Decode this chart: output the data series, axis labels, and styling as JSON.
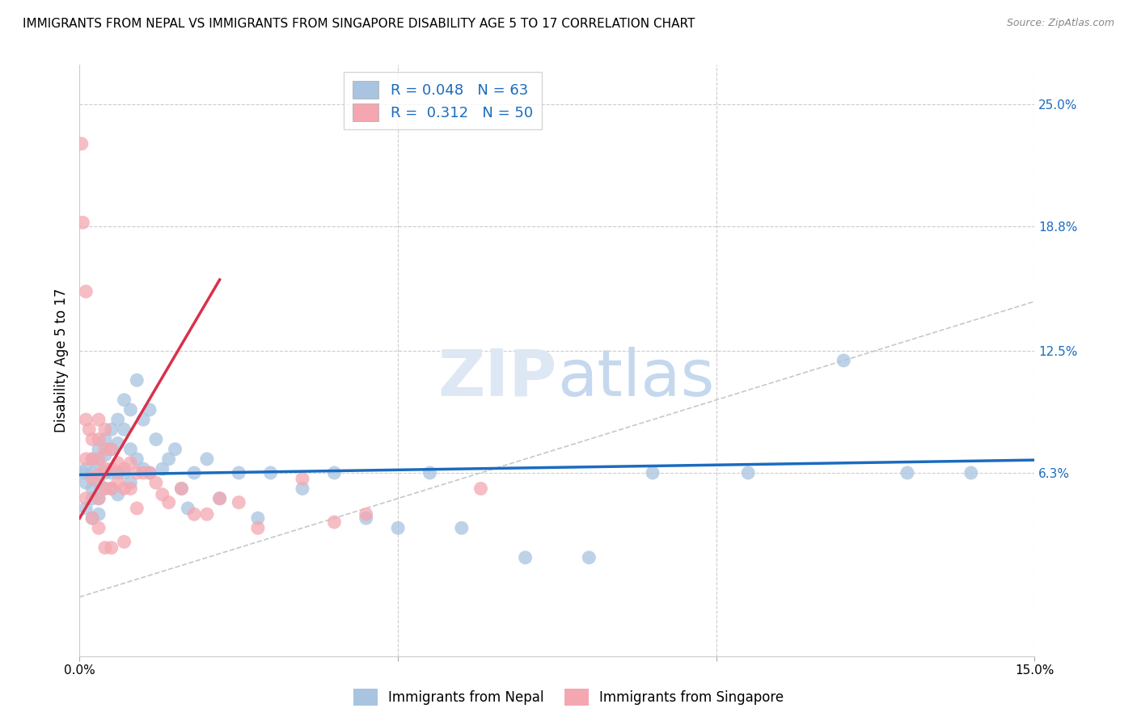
{
  "title": "IMMIGRANTS FROM NEPAL VS IMMIGRANTS FROM SINGAPORE DISABILITY AGE 5 TO 17 CORRELATION CHART",
  "source": "Source: ZipAtlas.com",
  "ylabel": "Disability Age 5 to 17",
  "xlim": [
    0.0,
    0.15
  ],
  "ylim": [
    -0.03,
    0.27
  ],
  "y_tick_labels_right": [
    "6.3%",
    "12.5%",
    "18.8%",
    "25.0%"
  ],
  "y_tick_vals_right": [
    0.063,
    0.125,
    0.188,
    0.25
  ],
  "nepal_color": "#a8c4e0",
  "singapore_color": "#f4a7b0",
  "nepal_line_color": "#1b6bbf",
  "singapore_line_color": "#d9314a",
  "diagonal_color": "#c8c8c8",
  "legend_nepal_label": "R = 0.048   N = 63",
  "legend_singapore_label": "R =  0.312   N = 50",
  "bottom_legend_nepal": "Immigrants from Nepal",
  "bottom_legend_singapore": "Immigrants from Singapore",
  "nepal_x": [
    0.0005,
    0.001,
    0.001,
    0.001,
    0.002,
    0.002,
    0.002,
    0.002,
    0.002,
    0.003,
    0.003,
    0.003,
    0.003,
    0.003,
    0.004,
    0.004,
    0.004,
    0.004,
    0.005,
    0.005,
    0.005,
    0.005,
    0.006,
    0.006,
    0.006,
    0.006,
    0.007,
    0.007,
    0.007,
    0.008,
    0.008,
    0.008,
    0.009,
    0.009,
    0.01,
    0.01,
    0.011,
    0.011,
    0.012,
    0.013,
    0.014,
    0.015,
    0.016,
    0.017,
    0.018,
    0.02,
    0.022,
    0.025,
    0.028,
    0.03,
    0.035,
    0.04,
    0.045,
    0.05,
    0.055,
    0.06,
    0.07,
    0.08,
    0.09,
    0.105,
    0.12,
    0.13,
    0.14
  ],
  "nepal_y": [
    0.063,
    0.065,
    0.058,
    0.045,
    0.07,
    0.063,
    0.055,
    0.05,
    0.04,
    0.075,
    0.068,
    0.058,
    0.05,
    0.042,
    0.08,
    0.072,
    0.063,
    0.055,
    0.085,
    0.075,
    0.063,
    0.055,
    0.09,
    0.078,
    0.063,
    0.052,
    0.1,
    0.085,
    0.063,
    0.095,
    0.075,
    0.058,
    0.11,
    0.07,
    0.09,
    0.065,
    0.095,
    0.063,
    0.08,
    0.065,
    0.07,
    0.075,
    0.055,
    0.045,
    0.063,
    0.07,
    0.05,
    0.063,
    0.04,
    0.063,
    0.055,
    0.063,
    0.04,
    0.035,
    0.063,
    0.035,
    0.02,
    0.02,
    0.063,
    0.063,
    0.12,
    0.063,
    0.063
  ],
  "singapore_x": [
    0.0003,
    0.0005,
    0.001,
    0.001,
    0.001,
    0.001,
    0.0015,
    0.002,
    0.002,
    0.002,
    0.002,
    0.003,
    0.003,
    0.003,
    0.003,
    0.003,
    0.003,
    0.004,
    0.004,
    0.004,
    0.004,
    0.004,
    0.005,
    0.005,
    0.005,
    0.005,
    0.006,
    0.006,
    0.007,
    0.007,
    0.007,
    0.008,
    0.008,
    0.009,
    0.009,
    0.01,
    0.011,
    0.012,
    0.013,
    0.014,
    0.016,
    0.018,
    0.02,
    0.022,
    0.025,
    0.028,
    0.035,
    0.04,
    0.045,
    0.063
  ],
  "singapore_y": [
    0.23,
    0.19,
    0.155,
    0.09,
    0.07,
    0.05,
    0.085,
    0.08,
    0.07,
    0.06,
    0.04,
    0.09,
    0.08,
    0.07,
    0.062,
    0.05,
    0.035,
    0.085,
    0.075,
    0.065,
    0.055,
    0.025,
    0.075,
    0.065,
    0.055,
    0.025,
    0.068,
    0.058,
    0.065,
    0.055,
    0.028,
    0.068,
    0.055,
    0.063,
    0.045,
    0.063,
    0.063,
    0.058,
    0.052,
    0.048,
    0.055,
    0.042,
    0.042,
    0.05,
    0.048,
    0.035,
    0.06,
    0.038,
    0.042,
    0.055
  ],
  "singapore_line_x": [
    0.0,
    0.022
  ],
  "singapore_line_y_start": 0.04,
  "singapore_line_slope": 5.5,
  "nepal_line_x": [
    0.0,
    0.15
  ],
  "nepal_line_y_start": 0.062,
  "nepal_line_slope": 0.05
}
